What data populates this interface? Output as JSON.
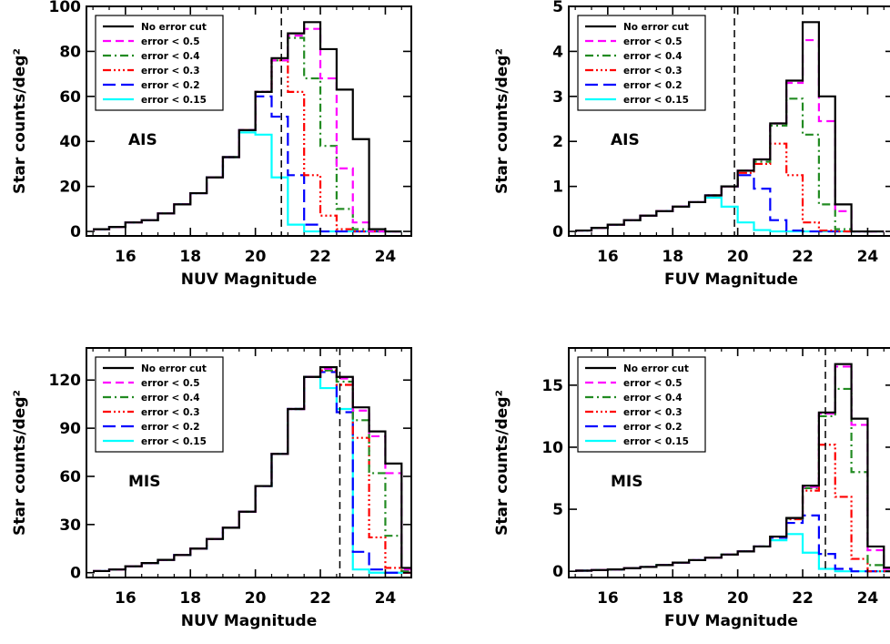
{
  "colors": {
    "No error cut": "#000000",
    "error < 0.5": "#ff00ff",
    "error < 0.4": "#228b22",
    "error < 0.3": "#ff0000",
    "error < 0.2": "#0000ff",
    "error < 0.15": "#00ffff"
  },
  "chart_data": [
    {
      "type": "line",
      "xlabel": "NUV Magnitude",
      "ylabel": "Star counts/deg²",
      "annotation": "AIS",
      "xlim": [
        14.8,
        24.8
      ],
      "ylim": [
        -2,
        100
      ],
      "xticks": [
        "16",
        "18",
        "20",
        "22",
        "24"
      ],
      "yticks": [
        "0",
        "20",
        "40",
        "60",
        "80",
        "100"
      ],
      "vline": 20.8,
      "legend_position": "top-left",
      "x_edges": [
        15,
        15.5,
        16,
        16.5,
        17,
        17.5,
        18,
        18.5,
        19,
        19.5,
        20,
        20.5,
        21,
        21.5,
        22,
        22.5,
        23,
        23.5,
        24,
        24.5
      ],
      "series": [
        {
          "name": "No error cut",
          "values": [
            1,
            2,
            4,
            5,
            8,
            12,
            17,
            24,
            33,
            45,
            62,
            77,
            88,
            93,
            81,
            63,
            41,
            1,
            0
          ]
        },
        {
          "name": "error < 0.5",
          "values": [
            1,
            2,
            4,
            5,
            8,
            12,
            17,
            24,
            33,
            45,
            62,
            76,
            87,
            90,
            68,
            28,
            4,
            0,
            0
          ]
        },
        {
          "name": "error < 0.4",
          "values": [
            1,
            2,
            4,
            5,
            8,
            12,
            17,
            24,
            33,
            45,
            62,
            76,
            86,
            68,
            38,
            10,
            1,
            0,
            0
          ]
        },
        {
          "name": "error < 0.3",
          "values": [
            1,
            2,
            4,
            5,
            8,
            12,
            17,
            24,
            33,
            45,
            62,
            76,
            62,
            25,
            7,
            1,
            0,
            0,
            0
          ]
        },
        {
          "name": "error < 0.2",
          "values": [
            1,
            2,
            4,
            5,
            8,
            12,
            17,
            24,
            33,
            45,
            60,
            51,
            25,
            3,
            0,
            0,
            0,
            0,
            0
          ]
        },
        {
          "name": "error < 0.15",
          "values": [
            1,
            2,
            4,
            5,
            8,
            12,
            17,
            24,
            33,
            44,
            43,
            24,
            3,
            0,
            0,
            0,
            0,
            0,
            0
          ]
        }
      ]
    },
    {
      "type": "line",
      "xlabel": "FUV Magnitude",
      "ylabel": "Star counts/deg²",
      "annotation": "AIS",
      "xlim": [
        14.8,
        24.8
      ],
      "ylim": [
        -0.1,
        5
      ],
      "xticks": [
        "16",
        "18",
        "20",
        "22",
        "24"
      ],
      "yticks": [
        "0",
        "1",
        "2",
        "3",
        "4",
        "5"
      ],
      "vline": 19.9,
      "legend_position": "top-left",
      "x_edges": [
        15,
        15.5,
        16,
        16.5,
        17,
        17.5,
        18,
        18.5,
        19,
        19.5,
        20,
        20.5,
        21,
        21.5,
        22,
        22.5,
        23,
        23.5,
        24,
        24.5
      ],
      "series": [
        {
          "name": "No error cut",
          "values": [
            0.02,
            0.08,
            0.15,
            0.25,
            0.35,
            0.45,
            0.55,
            0.65,
            0.8,
            1.0,
            1.35,
            1.6,
            2.4,
            3.35,
            4.65,
            3.0,
            0.6,
            0.0,
            0.0
          ]
        },
        {
          "name": "error < 0.5",
          "values": [
            0.02,
            0.08,
            0.15,
            0.25,
            0.35,
            0.45,
            0.55,
            0.65,
            0.8,
            1.0,
            1.35,
            1.6,
            2.4,
            3.3,
            4.25,
            2.45,
            0.45,
            0.0,
            0.0
          ]
        },
        {
          "name": "error < 0.4",
          "values": [
            0.02,
            0.08,
            0.15,
            0.25,
            0.35,
            0.45,
            0.55,
            0.65,
            0.8,
            1.0,
            1.35,
            1.55,
            2.35,
            2.95,
            2.15,
            0.6,
            0.05,
            0.0,
            0.0
          ]
        },
        {
          "name": "error < 0.3",
          "values": [
            0.02,
            0.08,
            0.15,
            0.25,
            0.35,
            0.45,
            0.55,
            0.65,
            0.8,
            1.0,
            1.3,
            1.5,
            1.95,
            1.25,
            0.2,
            0.02,
            0.0,
            0.0,
            0.0
          ]
        },
        {
          "name": "error < 0.2",
          "values": [
            0.02,
            0.08,
            0.15,
            0.25,
            0.35,
            0.45,
            0.55,
            0.65,
            0.8,
            1.0,
            1.25,
            0.95,
            0.25,
            0.02,
            0.0,
            0.0,
            0.0,
            0.0,
            0.0
          ]
        },
        {
          "name": "error < 0.15",
          "values": [
            0.02,
            0.08,
            0.15,
            0.25,
            0.35,
            0.45,
            0.55,
            0.65,
            0.75,
            0.55,
            0.2,
            0.03,
            0.0,
            0.0,
            0.0,
            0.0,
            0.0,
            0.0,
            0.0
          ]
        }
      ]
    },
    {
      "type": "line",
      "xlabel": "NUV Magnitude",
      "ylabel": "Star counts/deg²",
      "annotation": "MIS",
      "xlim": [
        14.8,
        24.8
      ],
      "ylim": [
        -3,
        140
      ],
      "xticks": [
        "16",
        "18",
        "20",
        "22",
        "24"
      ],
      "yticks": [
        "0",
        "30",
        "60",
        "90",
        "120"
      ],
      "vline": 22.6,
      "legend_position": "top-left",
      "x_edges": [
        15,
        15.5,
        16,
        16.5,
        17,
        17.5,
        18,
        18.5,
        19,
        19.5,
        20,
        20.5,
        21,
        21.5,
        22,
        22.5,
        23,
        23.5,
        24,
        24.5
      ],
      "series": [
        {
          "name": "No error cut",
          "values": [
            1,
            2,
            4,
            6,
            8,
            11,
            15,
            21,
            28,
            38,
            54,
            74,
            102,
            122,
            128,
            122,
            103,
            88,
            68,
            3
          ]
        },
        {
          "name": "error < 0.5",
          "values": [
            1,
            2,
            4,
            6,
            8,
            11,
            15,
            21,
            28,
            38,
            54,
            74,
            102,
            122,
            127,
            121,
            101,
            85,
            62,
            2
          ]
        },
        {
          "name": "error < 0.4",
          "values": [
            1,
            2,
            4,
            6,
            8,
            11,
            15,
            21,
            28,
            38,
            54,
            74,
            102,
            122,
            126,
            119,
            95,
            62,
            23,
            1
          ]
        },
        {
          "name": "error < 0.3",
          "values": [
            1,
            2,
            4,
            6,
            8,
            11,
            15,
            21,
            28,
            38,
            54,
            74,
            102,
            122,
            126,
            117,
            84,
            22,
            3,
            0
          ]
        },
        {
          "name": "error < 0.2",
          "values": [
            1,
            2,
            4,
            6,
            8,
            11,
            15,
            21,
            28,
            38,
            54,
            74,
            102,
            122,
            125,
            100,
            13,
            2,
            0,
            0
          ]
        },
        {
          "name": "error < 0.15",
          "values": [
            1,
            2,
            4,
            6,
            8,
            11,
            15,
            21,
            28,
            38,
            54,
            74,
            102,
            122,
            115,
            102,
            2,
            0,
            0,
            0
          ]
        }
      ]
    },
    {
      "type": "line",
      "xlabel": "FUV Magnitude",
      "ylabel": "Star counts/deg²",
      "annotation": "MIS",
      "xlim": [
        14.8,
        24.8
      ],
      "ylim": [
        -0.5,
        18
      ],
      "xticks": [
        "16",
        "18",
        "20",
        "22",
        "24"
      ],
      "yticks": [
        "0",
        "5",
        "10",
        "15"
      ],
      "vline": 22.7,
      "legend_position": "top-left",
      "x_edges": [
        15,
        15.5,
        16,
        16.5,
        17,
        17.5,
        18,
        18.5,
        19,
        19.5,
        20,
        20.5,
        21,
        21.5,
        22,
        22.5,
        23,
        23.5,
        24,
        24.5
      ],
      "series": [
        {
          "name": "No error cut",
          "values": [
            0.05,
            0.1,
            0.15,
            0.25,
            0.35,
            0.5,
            0.7,
            0.9,
            1.1,
            1.35,
            1.6,
            2.0,
            2.8,
            4.3,
            6.9,
            12.8,
            16.7,
            12.3,
            2.0,
            0.3
          ]
        },
        {
          "name": "error < 0.5",
          "values": [
            0.05,
            0.1,
            0.15,
            0.25,
            0.35,
            0.5,
            0.7,
            0.9,
            1.1,
            1.35,
            1.6,
            2.0,
            2.8,
            4.3,
            6.8,
            12.7,
            16.5,
            11.8,
            1.7,
            0.2
          ]
        },
        {
          "name": "error < 0.4",
          "values": [
            0.05,
            0.1,
            0.15,
            0.25,
            0.35,
            0.5,
            0.7,
            0.9,
            1.1,
            1.35,
            1.6,
            2.0,
            2.8,
            4.25,
            6.7,
            12.5,
            14.7,
            8.0,
            0.5,
            0.0
          ]
        },
        {
          "name": "error < 0.3",
          "values": [
            0.05,
            0.1,
            0.15,
            0.25,
            0.35,
            0.5,
            0.7,
            0.9,
            1.1,
            1.35,
            1.6,
            2.0,
            2.8,
            4.2,
            6.5,
            10.2,
            6.0,
            1.0,
            0.0,
            0.0
          ]
        },
        {
          "name": "error < 0.2",
          "values": [
            0.05,
            0.1,
            0.15,
            0.25,
            0.35,
            0.5,
            0.7,
            0.9,
            1.1,
            1.35,
            1.6,
            2.0,
            2.7,
            3.9,
            4.5,
            1.4,
            0.2,
            0.0,
            0.0,
            0.0
          ]
        },
        {
          "name": "error < 0.15",
          "values": [
            0.05,
            0.1,
            0.15,
            0.25,
            0.35,
            0.5,
            0.7,
            0.9,
            1.1,
            1.35,
            1.6,
            2.0,
            2.5,
            3.0,
            1.5,
            0.2,
            0.0,
            0.0,
            0.0,
            0.0
          ]
        }
      ]
    }
  ]
}
